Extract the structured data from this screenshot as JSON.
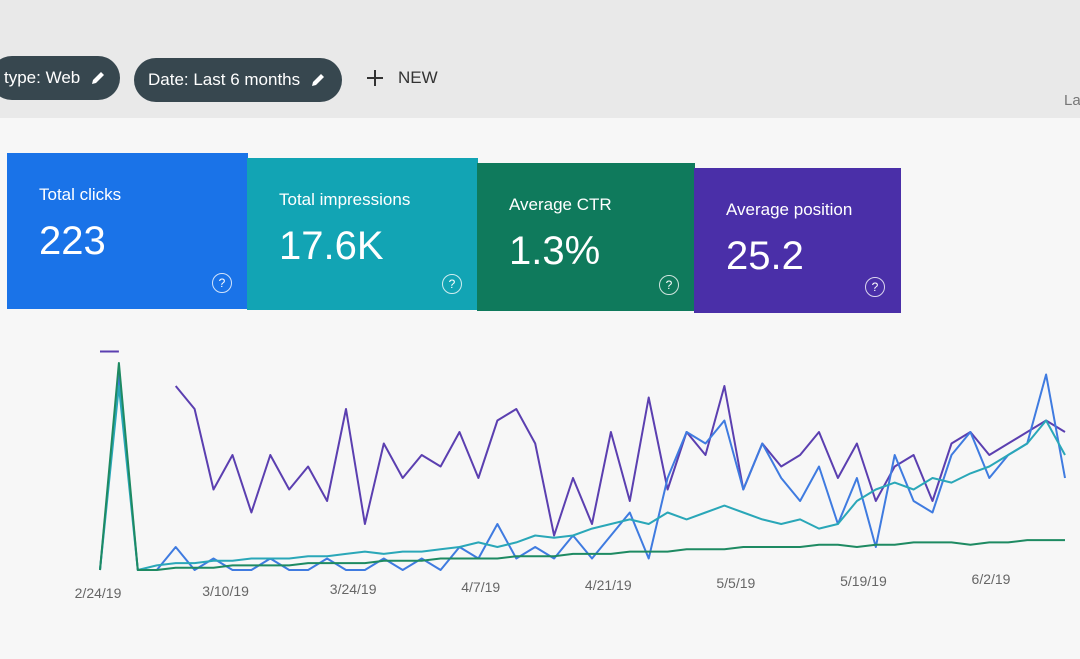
{
  "toolbar": {
    "filters": [
      "type: Web",
      "Date: Last 6 months"
    ],
    "new_button": "NEW",
    "right_text": "La"
  },
  "metrics": [
    {
      "label": "Total clicks",
      "value": "223"
    },
    {
      "label": "Total impressions",
      "value": "17.6K"
    },
    {
      "label": "Average CTR",
      "value": "1.3%"
    },
    {
      "label": "Average position",
      "value": "25.2"
    }
  ],
  "chart_data": {
    "type": "line",
    "x_labels": [
      "2/24/19",
      "3/10/19",
      "3/24/19",
      "4/7/19",
      "4/21/19",
      "5/5/19",
      "5/19/19",
      "6/2/19"
    ],
    "ylim": [
      0,
      100
    ],
    "series": [
      {
        "color": "#5b3fb0",
        "values": [
          95,
          95,
          null,
          null,
          80,
          70,
          35,
          50,
          25,
          50,
          35,
          45,
          30,
          70,
          20,
          55,
          40,
          50,
          45,
          60,
          40,
          65,
          70,
          55,
          15,
          40,
          20,
          60,
          30,
          75,
          35,
          60,
          50,
          80,
          35,
          55,
          45,
          50,
          60,
          40,
          55,
          30,
          45,
          50,
          30,
          55,
          60,
          50,
          55,
          60,
          65,
          60
        ]
      },
      {
        "color": "#3f7be0",
        "values": [
          0,
          85,
          0,
          0,
          10,
          0,
          5,
          0,
          0,
          5,
          0,
          0,
          5,
          0,
          0,
          5,
          0,
          5,
          0,
          10,
          5,
          20,
          5,
          10,
          5,
          15,
          5,
          15,
          25,
          5,
          40,
          60,
          55,
          65,
          35,
          55,
          40,
          30,
          45,
          20,
          40,
          10,
          50,
          30,
          25,
          50,
          60,
          40,
          50,
          55,
          85,
          40
        ]
      },
      {
        "color": "#2aa7b8",
        "values": [
          0,
          80,
          0,
          2,
          3,
          3,
          4,
          4,
          5,
          5,
          5,
          6,
          6,
          7,
          8,
          7,
          8,
          8,
          9,
          10,
          12,
          10,
          12,
          15,
          14,
          15,
          18,
          20,
          22,
          20,
          25,
          22,
          25,
          28,
          25,
          22,
          20,
          22,
          18,
          20,
          30,
          35,
          38,
          35,
          40,
          38,
          42,
          45,
          50,
          55,
          65,
          50
        ]
      },
      {
        "color": "#1e8a62",
        "values": [
          0,
          90,
          0,
          0,
          1,
          1,
          1,
          2,
          2,
          2,
          2,
          3,
          3,
          3,
          3,
          4,
          4,
          4,
          5,
          5,
          5,
          5,
          6,
          6,
          6,
          7,
          7,
          7,
          8,
          8,
          8,
          9,
          9,
          9,
          10,
          10,
          10,
          10,
          11,
          11,
          10,
          11,
          11,
          12,
          12,
          12,
          11,
          12,
          12,
          13,
          13,
          13
        ]
      }
    ]
  }
}
